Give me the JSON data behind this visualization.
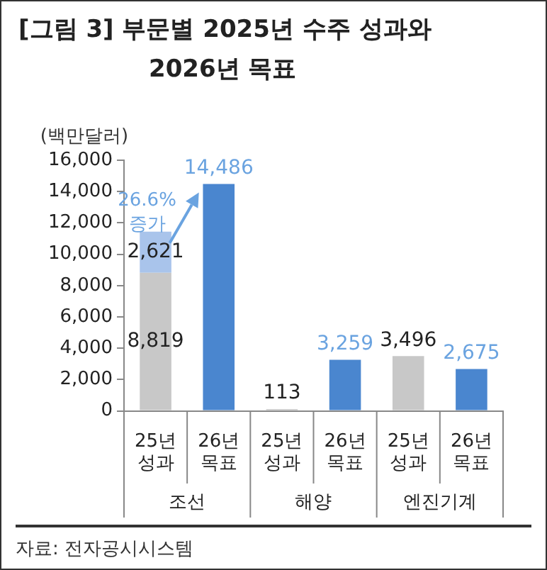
{
  "chart_data": {
    "type": "bar",
    "title": "[그림 3] 부문별 2025년 수주 성과와 2026년 목표",
    "ylabel": "(백만달러)",
    "categories": [
      "25년 성과",
      "26년 목표",
      "25년 성과",
      "26년 목표",
      "25년 성과",
      "26년 목표"
    ],
    "stacked": true,
    "ylim": [
      0,
      16000
    ],
    "yticks": [
      0,
      {
        "value": 2000,
        "label": "2,000"
      },
      {
        "value": 4000,
        "label": "4,000"
      },
      {
        "value": 6000,
        "label": "6,000"
      },
      {
        "value": 8000,
        "label": "8,000"
      },
      {
        "value": 10000,
        "label": "10,000"
      },
      {
        "value": 12000,
        "label": "12,000"
      },
      {
        "value": 14000,
        "label": "14,000"
      },
      {
        "value": 16000,
        "label": "16,000"
      }
    ],
    "grid": false,
    "legend": false,
    "series": [
      {
        "color": "#c8c8c8",
        "values": [
          8819,
          null,
          113,
          null,
          3496,
          null
        ],
        "value_labels": [
          "8,819",
          null,
          "113",
          null,
          "3,496",
          null
        ]
      },
      {
        "color": "#a9c4eb",
        "values": [
          2621,
          null,
          null,
          null,
          null,
          null
        ],
        "value_labels": [
          "2,621",
          null,
          null,
          null,
          null,
          null
        ]
      },
      {
        "color": "#4a86cf",
        "values": [
          null,
          14486,
          null,
          3259,
          null,
          2675
        ],
        "value_labels": [
          null,
          "14,486",
          null,
          "3,259",
          null,
          "2,675"
        ]
      }
    ],
    "annotations": [
      "조선",
      "해양",
      "엔진기계",
      "26.6% 증가",
      "자료: 전자공시시스템"
    ]
  }
}
